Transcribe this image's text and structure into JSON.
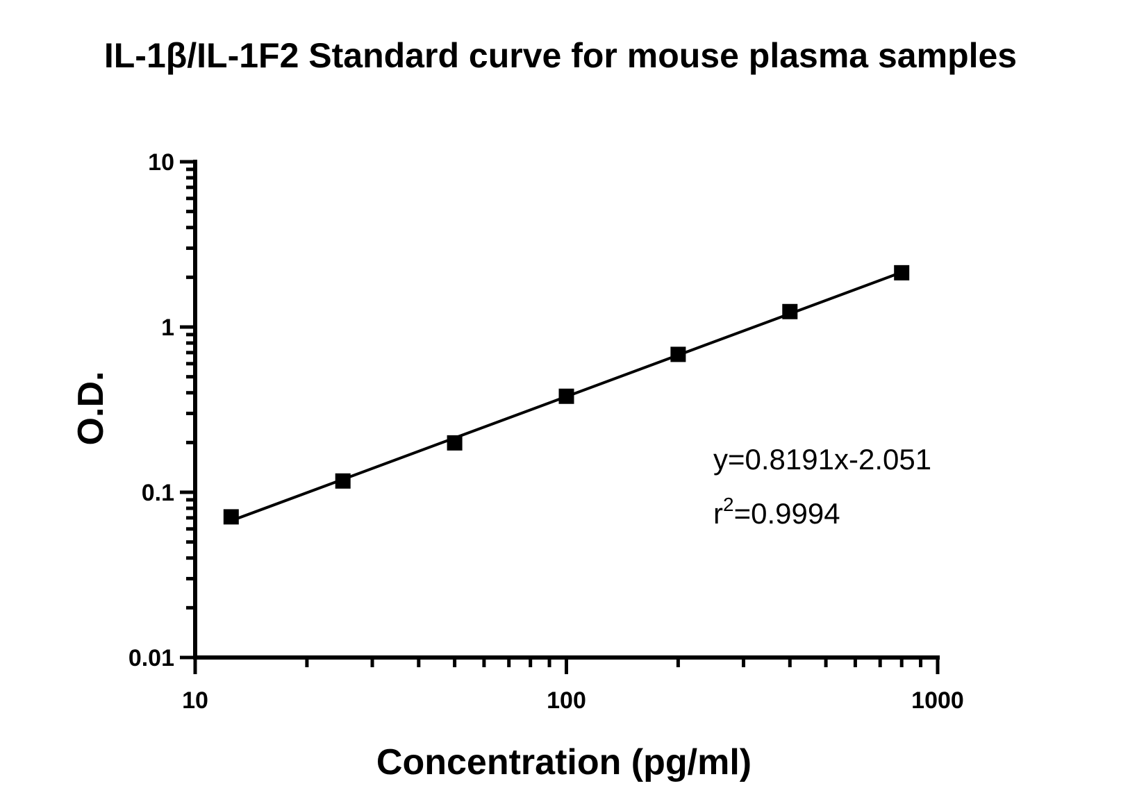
{
  "chart_data": {
    "type": "scatter",
    "title": "IL-1β/IL-1F2 Standard curve for mouse plasma samples",
    "xlabel": "Concentration (pg/ml)",
    "ylabel": "O.D.",
    "xscale": "log",
    "yscale": "log",
    "xlim": [
      10,
      1000
    ],
    "ylim": [
      0.01,
      10
    ],
    "xticks": [
      {
        "value": 10,
        "label": "10"
      },
      {
        "value": 100,
        "label": "100"
      },
      {
        "value": 1000,
        "label": "1000"
      }
    ],
    "yticks": [
      {
        "value": 0.01,
        "label": "0.01"
      },
      {
        "value": 0.1,
        "label": "0.1"
      },
      {
        "value": 1,
        "label": "1"
      },
      {
        "value": 10,
        "label": "10"
      }
    ],
    "grid": false,
    "marker": "square",
    "color": "#000000",
    "points": [
      {
        "x": 12.5,
        "y": 0.071
      },
      {
        "x": 25,
        "y": 0.117
      },
      {
        "x": 50,
        "y": 0.199
      },
      {
        "x": 100,
        "y": 0.381
      },
      {
        "x": 200,
        "y": 0.683
      },
      {
        "x": 400,
        "y": 1.24
      },
      {
        "x": 800,
        "y": 2.13
      }
    ],
    "fit_line": {
      "x_start": 12.5,
      "x_end": 800
    },
    "annotation": {
      "equation": "y=0.8191x-2.051",
      "r_prefix": "r",
      "r_sup": "2",
      "r_value": "=0.9994"
    }
  }
}
